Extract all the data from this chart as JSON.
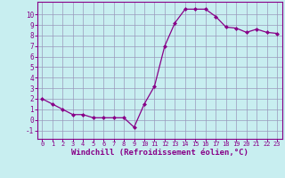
{
  "x": [
    0,
    1,
    2,
    3,
    4,
    5,
    6,
    7,
    8,
    9,
    10,
    11,
    12,
    13,
    14,
    15,
    16,
    17,
    18,
    19,
    20,
    21,
    22,
    23
  ],
  "y": [
    2,
    1.5,
    1,
    0.5,
    0.5,
    0.2,
    0.2,
    0.2,
    0.2,
    -0.7,
    1.5,
    3.2,
    7.0,
    9.2,
    10.5,
    10.5,
    10.5,
    9.8,
    8.8,
    8.7,
    8.3,
    8.6,
    8.3,
    8.2
  ],
  "line_color": "#880088",
  "marker": "D",
  "markersize": 2.0,
  "linewidth": 0.9,
  "bg_color": "#c8eef0",
  "grid_color": "#9999bb",
  "xlabel": "Windchill (Refroidissement éolien,°C)",
  "xlim": [
    -0.5,
    23.5
  ],
  "ylim": [
    -1.8,
    11.2
  ],
  "yticks": [
    -1,
    0,
    1,
    2,
    3,
    4,
    5,
    6,
    7,
    8,
    9,
    10
  ],
  "xticks": [
    0,
    1,
    2,
    3,
    4,
    5,
    6,
    7,
    8,
    9,
    10,
    11,
    12,
    13,
    14,
    15,
    16,
    17,
    18,
    19,
    20,
    21,
    22,
    23
  ],
  "label_color": "#880088",
  "tick_color": "#880088",
  "axis_color": "#880088",
  "xlabel_fontsize": 6.5,
  "tick_fontsize_x": 5.0,
  "tick_fontsize_y": 5.5
}
